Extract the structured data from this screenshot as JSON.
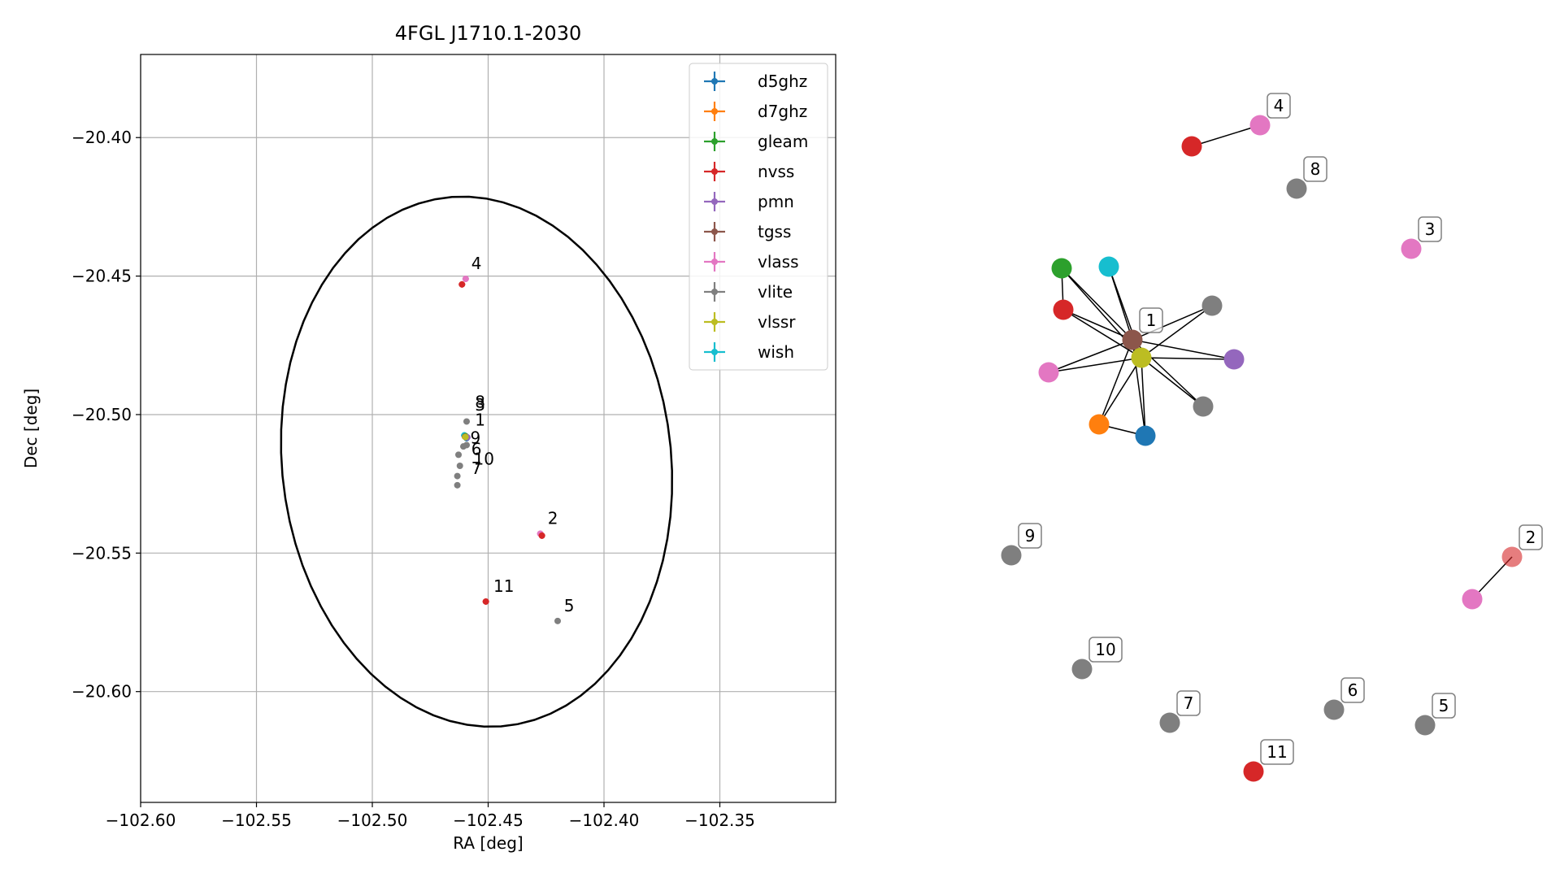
{
  "colors": {
    "d5ghz": "#1f77b4",
    "d7ghz": "#ff7f0e",
    "gleam": "#2ca02c",
    "nvss": "#d62728",
    "pmn": "#9467bd",
    "tgss": "#8c564b",
    "vlass": "#e377c2",
    "vlite": "#7f7f7f",
    "vlssr": "#bcbd22",
    "wish": "#17becf",
    "grid": "#b0b0b0",
    "ellipse": "#000000"
  },
  "chart_data": [
    {
      "type": "scatter",
      "title": "4FGL J1710.1-2030",
      "xlabel": "RA [deg]",
      "ylabel": "Dec [deg]",
      "xlim": [
        -102.6,
        -102.3
      ],
      "ylim": [
        -20.64,
        -20.37
      ],
      "xticks": [
        -102.6,
        -102.55,
        -102.5,
        -102.45,
        -102.4,
        -102.35
      ],
      "xtick_labels": [
        "−102.60",
        "−102.55",
        "−102.50",
        "−102.45",
        "−102.40",
        "−102.35"
      ],
      "yticks": [
        -20.4,
        -20.45,
        -20.5,
        -20.55,
        -20.6
      ],
      "ytick_labels": [
        "−20.40",
        "−20.45",
        "−20.50",
        "−20.55",
        "−20.60"
      ],
      "grid": true,
      "legend_position": "top-right",
      "legend": [
        "d5ghz",
        "d7ghz",
        "gleam",
        "nvss",
        "pmn",
        "tgss",
        "vlass",
        "vlite",
        "vlssr",
        "wish"
      ],
      "ellipse": {
        "center": [
          -102.455,
          -20.517
        ],
        "ra_semi_axis": 0.0835,
        "dec_semi_axis": 0.0965,
        "angle_deg": 15
      },
      "points": [
        {
          "series": "vlass",
          "x": -102.4597,
          "y": -20.451
        },
        {
          "series": "nvss",
          "x": -102.4613,
          "y": -20.453
        },
        {
          "series": "vlite",
          "x": -102.4593,
          "y": -20.5025
        },
        {
          "series": "wish",
          "x": -102.4603,
          "y": -20.5075
        },
        {
          "series": "d5ghz",
          "x": -102.4593,
          "y": -20.5085
        },
        {
          "series": "d7ghz",
          "x": -102.46,
          "y": -20.508
        },
        {
          "series": "gleam",
          "x": -102.4597,
          "y": -20.5078
        },
        {
          "series": "pmn",
          "x": -102.459,
          "y": -20.5082
        },
        {
          "series": "tgss",
          "x": -102.4599,
          "y": -20.508
        },
        {
          "series": "vlssr",
          "x": -102.4598,
          "y": -20.5081
        },
        {
          "series": "vlite",
          "x": -102.4593,
          "y": -20.511
        },
        {
          "series": "vlite",
          "x": -102.4607,
          "y": -20.5115
        },
        {
          "series": "vlite",
          "x": -102.4628,
          "y": -20.5145
        },
        {
          "series": "vlite",
          "x": -102.4622,
          "y": -20.5185
        },
        {
          "series": "vlite",
          "x": -102.4633,
          "y": -20.5222
        },
        {
          "series": "vlite",
          "x": -102.4633,
          "y": -20.5255
        },
        {
          "series": "vlass",
          "x": -102.4275,
          "y": -20.543
        },
        {
          "series": "nvss",
          "x": -102.4268,
          "y": -20.5437
        },
        {
          "series": "nvss",
          "x": -102.451,
          "y": -20.5675
        },
        {
          "series": "vlite",
          "x": -102.42,
          "y": -20.5745
        }
      ],
      "labels": [
        {
          "text": "4",
          "x": -102.4573,
          "y": -20.4475
        },
        {
          "text": "8",
          "x": -102.4557,
          "y": -20.4975
        },
        {
          "text": "3",
          "x": -102.4557,
          "y": -20.4985
        },
        {
          "text": "1",
          "x": -102.4557,
          "y": -20.504
        },
        {
          "text": "9",
          "x": -102.4577,
          "y": -20.5105
        },
        {
          "text": "6",
          "x": -102.4573,
          "y": -20.5145
        },
        {
          "text": "10",
          "x": -102.4563,
          "y": -20.518
        },
        {
          "text": "7",
          "x": -102.4573,
          "y": -20.5215
        },
        {
          "text": "2",
          "x": -102.4243,
          "y": -20.5395
        },
        {
          "text": "11",
          "x": -102.4477,
          "y": -20.564
        },
        {
          "text": "5",
          "x": -102.4173,
          "y": -20.571
        }
      ]
    },
    {
      "type": "network",
      "nodes": [
        {
          "id": "n1",
          "series": "tgss",
          "label": "1"
        },
        {
          "id": "n2",
          "series": "vlssr"
        },
        {
          "id": "n3",
          "series": "gleam"
        },
        {
          "id": "n4",
          "series": "wish"
        },
        {
          "id": "n5",
          "series": "nvss"
        },
        {
          "id": "n6",
          "series": "vlite"
        },
        {
          "id": "n7",
          "series": "pmn"
        },
        {
          "id": "n8",
          "series": "vlass"
        },
        {
          "id": "n9",
          "series": "vlite"
        },
        {
          "id": "n10",
          "series": "d7ghz"
        },
        {
          "id": "n11",
          "series": "d5ghz"
        },
        {
          "id": "n12",
          "series": "nvss"
        },
        {
          "id": "n13",
          "series": "vlass",
          "label": "4"
        },
        {
          "id": "n14",
          "series": "vlite",
          "label": "8"
        },
        {
          "id": "n15",
          "series": "vlass",
          "label": "3"
        },
        {
          "id": "n16",
          "series": "vlite",
          "label": "9"
        },
        {
          "id": "n17",
          "series": "nvss",
          "label": "2"
        },
        {
          "id": "n18",
          "series": "vlass"
        },
        {
          "id": "n19",
          "series": "vlite",
          "label": "10"
        },
        {
          "id": "n20",
          "series": "vlite",
          "label": "7"
        },
        {
          "id": "n21",
          "series": "vlite",
          "label": "6"
        },
        {
          "id": "n22",
          "series": "vlite",
          "label": "5"
        },
        {
          "id": "n23",
          "series": "nvss",
          "label": "11"
        }
      ],
      "edges": [
        [
          "n1",
          "n2"
        ],
        [
          "n1",
          "n3"
        ],
        [
          "n1",
          "n4"
        ],
        [
          "n1",
          "n5"
        ],
        [
          "n1",
          "n6"
        ],
        [
          "n1",
          "n7"
        ],
        [
          "n1",
          "n8"
        ],
        [
          "n1",
          "n9"
        ],
        [
          "n1",
          "n10"
        ],
        [
          "n1",
          "n11"
        ],
        [
          "n2",
          "n3"
        ],
        [
          "n2",
          "n4"
        ],
        [
          "n2",
          "n5"
        ],
        [
          "n2",
          "n6"
        ],
        [
          "n2",
          "n7"
        ],
        [
          "n2",
          "n8"
        ],
        [
          "n2",
          "n9"
        ],
        [
          "n2",
          "n10"
        ],
        [
          "n2",
          "n11"
        ],
        [
          "n10",
          "n11"
        ],
        [
          "n3",
          "n5"
        ],
        [
          "n12",
          "n13"
        ],
        [
          "n17",
          "n18"
        ]
      ]
    }
  ]
}
